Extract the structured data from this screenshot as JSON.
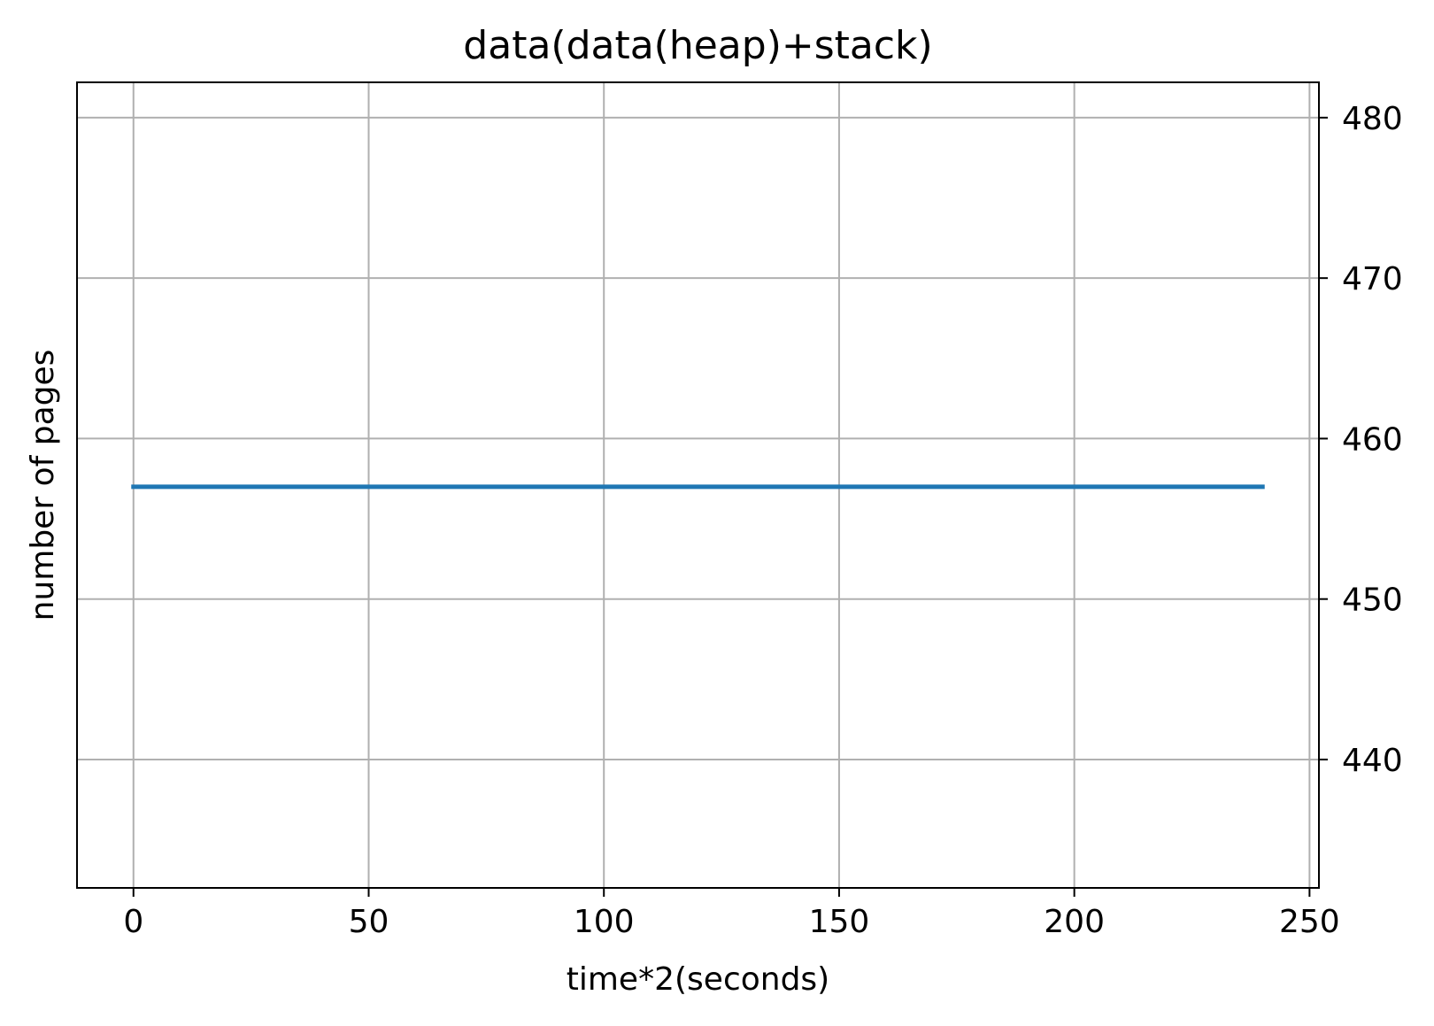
{
  "chart_data": {
    "type": "line",
    "title": "data(data(heap)+stack)",
    "xlabel": "time*2(seconds)",
    "ylabel": "number of pages",
    "xlim": [
      -12,
      252
    ],
    "ylim": [
      432,
      482.2
    ],
    "x_ticks": [
      0,
      50,
      100,
      150,
      200,
      250
    ],
    "x_tick_labels": [
      "0",
      "50",
      "100",
      "150",
      "200",
      "250"
    ],
    "y_ticks": [
      440,
      450,
      460,
      470,
      480
    ],
    "y_tick_labels": [
      "440",
      "450",
      "460",
      "470",
      "480"
    ],
    "y_axis_side": "right",
    "grid": true,
    "legend": "none",
    "series": [
      {
        "color": "#1f77b4",
        "x": [
          0,
          240
        ],
        "y": [
          457,
          457
        ]
      }
    ]
  },
  "colors": {
    "grid": "#b0b0b0",
    "axes": "#000000",
    "background": "#ffffff"
  }
}
